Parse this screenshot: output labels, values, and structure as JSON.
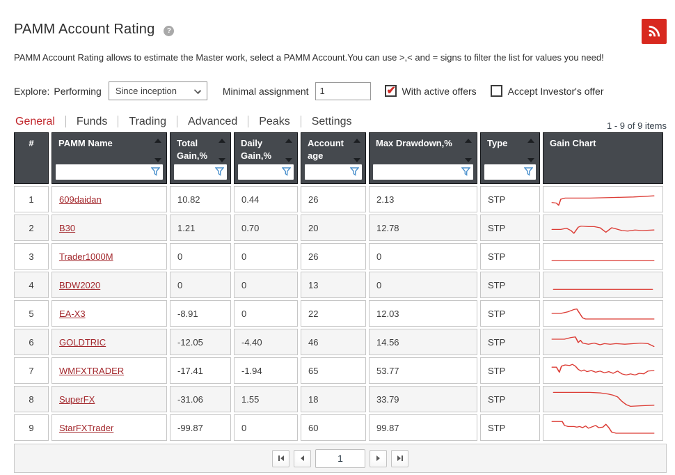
{
  "header": {
    "title": "PAMM Account Rating",
    "help_icon": "?",
    "rss_icon": "rss"
  },
  "description": "PAMM Account Rating allows to estimate the Master work, select a PAMM Account.You can use >,< and = signs to filter the list for values you need!",
  "filters": {
    "explore_label": "Explore:",
    "performing_label": "Performing",
    "period_selected": "Since inception",
    "minimal_assignment_label": "Minimal assignment",
    "minimal_assignment_value": "1",
    "with_active_offers": {
      "label": "With active offers",
      "checked": true
    },
    "accept_investors_offer": {
      "label": "Accept Investor's offer",
      "checked": false
    }
  },
  "tabs": [
    {
      "label": "General",
      "active": true
    },
    {
      "label": "Funds",
      "active": false
    },
    {
      "label": "Trading",
      "active": false
    },
    {
      "label": "Advanced",
      "active": false
    },
    {
      "label": "Peaks",
      "active": false
    },
    {
      "label": "Settings",
      "active": false
    }
  ],
  "items_count": "1 - 9 of 9 items",
  "table": {
    "columns": [
      {
        "label": "#",
        "sortable": false,
        "filterable": false
      },
      {
        "label": "PAMM Name",
        "sortable": true,
        "filterable": true
      },
      {
        "label": "Total Gain,%",
        "sortable": true,
        "filterable": true
      },
      {
        "label": "Daily Gain,%",
        "sortable": true,
        "filterable": true
      },
      {
        "label": "Account age",
        "sortable": true,
        "filterable": true
      },
      {
        "label": "Max Drawdown,%",
        "sortable": true,
        "filterable": true
      },
      {
        "label": "Type",
        "sortable": true,
        "filterable": true
      },
      {
        "label": "Gain Chart",
        "sortable": false,
        "filterable": false
      }
    ],
    "rows": [
      {
        "num": "1",
        "name": "609daidan",
        "total": "10.82",
        "daily": "0.44",
        "age": "26",
        "maxdd": "2.13",
        "type": "STP",
        "spark": "8,26 14,27 17,31 20,20 26,18 60,18 90,17 120,16 148,14"
      },
      {
        "num": "2",
        "name": "B30",
        "total": "1.21",
        "daily": "0.70",
        "age": "20",
        "maxdd": "12.78",
        "type": "STP",
        "spark": "8,23 20,23 28,21 34,25 38,30 44,19 48,17 58,18 66,18 74,20 82,28 90,20 96,22 104,25 112,26 122,24 132,25 148,24"
      },
      {
        "num": "3",
        "name": "Trader1000M",
        "total": "0",
        "daily": "0",
        "age": "26",
        "maxdd": "0",
        "type": "STP",
        "spark": "8,28 148,28"
      },
      {
        "num": "4",
        "name": "BDW2020",
        "total": "0",
        "daily": "0",
        "age": "13",
        "maxdd": "0",
        "type": "STP",
        "spark": "10,28 146,28"
      },
      {
        "num": "5",
        "name": "EA-X3",
        "total": "-8.91",
        "daily": "0",
        "age": "22",
        "maxdd": "12.03",
        "type": "STP",
        "spark": "8,20 20,20 30,17 38,13 42,12 46,20 50,28 54,30 148,30"
      },
      {
        "num": "6",
        "name": "GOLDTRIC",
        "total": "-12.05",
        "daily": "-4.40",
        "age": "46",
        "maxdd": "14.56",
        "type": "STP",
        "spark": "8,15 25,15 34,12 40,11 44,21 47,17 50,22 58,24 66,22 74,25 80,23 88,24 96,23 108,24 120,23 130,22 140,23 148,28"
      },
      {
        "num": "7",
        "name": "WMFXTRADER",
        "total": "-17.41",
        "daily": "-1.94",
        "age": "65",
        "maxdd": "53.77",
        "type": "STP",
        "spark": "8,14 14,14 18,23 21,12 26,10 32,11 36,9 40,12 44,18 48,21 52,19 56,22 62,20 68,23 74,21 80,24 86,22 92,25 98,21 104,26 110,28 116,26 122,28 128,25 134,26 140,21 148,20"
      },
      {
        "num": "8",
        "name": "SuperFX",
        "total": "-31.06",
        "daily": "1.55",
        "age": "18",
        "maxdd": "33.79",
        "type": "STP",
        "spark": "10,8 60,8 75,9 85,11 92,13 98,16 104,24 110,30 116,33 130,32 148,31"
      },
      {
        "num": "9",
        "name": "StarFXTrader",
        "total": "-99.87",
        "daily": "0",
        "age": "60",
        "maxdd": "99.87",
        "type": "STP",
        "spark": "8,9 22,9 25,16 30,18 38,18 42,19 46,18 50,20 54,17 58,21 64,18 68,16 72,20 78,19 82,14 86,20 90,28 96,30 148,30"
      }
    ]
  },
  "pagination": {
    "page": "1"
  },
  "colors": {
    "accent_red": "#c1262b",
    "link_red": "#a3282d",
    "sparkline_red": "#dc3c35",
    "rss_red": "#d8291f",
    "header_bg": "#45494e",
    "funnel_blue": "#4f93ce"
  }
}
